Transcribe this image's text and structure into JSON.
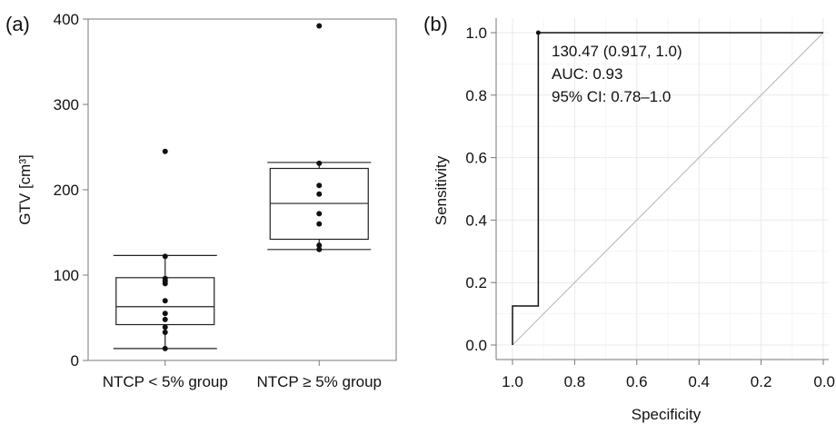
{
  "chart_data": [
    {
      "panel_label": "(a)",
      "type": "box",
      "title": "",
      "xlabel": "",
      "ylabel": "GTV [cm³]",
      "ylim": [
        0,
        400
      ],
      "yticks": [
        "0",
        "100",
        "200",
        "300",
        "400"
      ],
      "grid": false,
      "categories": [
        "NTCP < 5% group",
        "NTCP ≥ 5% group"
      ],
      "boxes": [
        {
          "whisker_low": 14,
          "q1": 42,
          "median": 63,
          "q3": 97,
          "whisker_high": 123
        },
        {
          "whisker_low": 130,
          "q1": 142,
          "median": 184,
          "q3": 225,
          "whisker_high": 232
        }
      ],
      "points": [
        [
          14,
          33,
          39,
          48,
          55,
          70,
          90,
          93,
          96,
          122,
          245
        ],
        [
          130,
          135,
          160,
          172,
          195,
          205,
          231,
          392
        ]
      ]
    },
    {
      "panel_label": "(b)",
      "type": "line",
      "title": "",
      "xlabel": "Specificity",
      "ylabel": "Sensitivity",
      "xlim": [
        1.0,
        0.0
      ],
      "ylim": [
        0.0,
        1.0
      ],
      "xticks": [
        "1.0",
        "0.8",
        "0.6",
        "0.4",
        "0.2",
        "0.0"
      ],
      "yticks": [
        "0.0",
        "0.2",
        "0.4",
        "0.6",
        "0.8",
        "1.0"
      ],
      "grid": true,
      "series": [
        {
          "x": [
            1.0,
            1.0,
            0.917,
            0.917,
            0.917,
            0.0
          ],
          "y": [
            0.0,
            0.125,
            0.125,
            1.0,
            1.0,
            1.0
          ]
        }
      ],
      "reference_line": {
        "x": [
          1.0,
          0.0
        ],
        "y": [
          0.0,
          1.0
        ]
      },
      "threshold_point": {
        "x": 0.917,
        "y": 1.0
      },
      "annotations": [
        "130.47 (0.917, 1.0)",
        "AUC: 0.93",
        "95% CI: 0.78–1.0"
      ]
    }
  ]
}
